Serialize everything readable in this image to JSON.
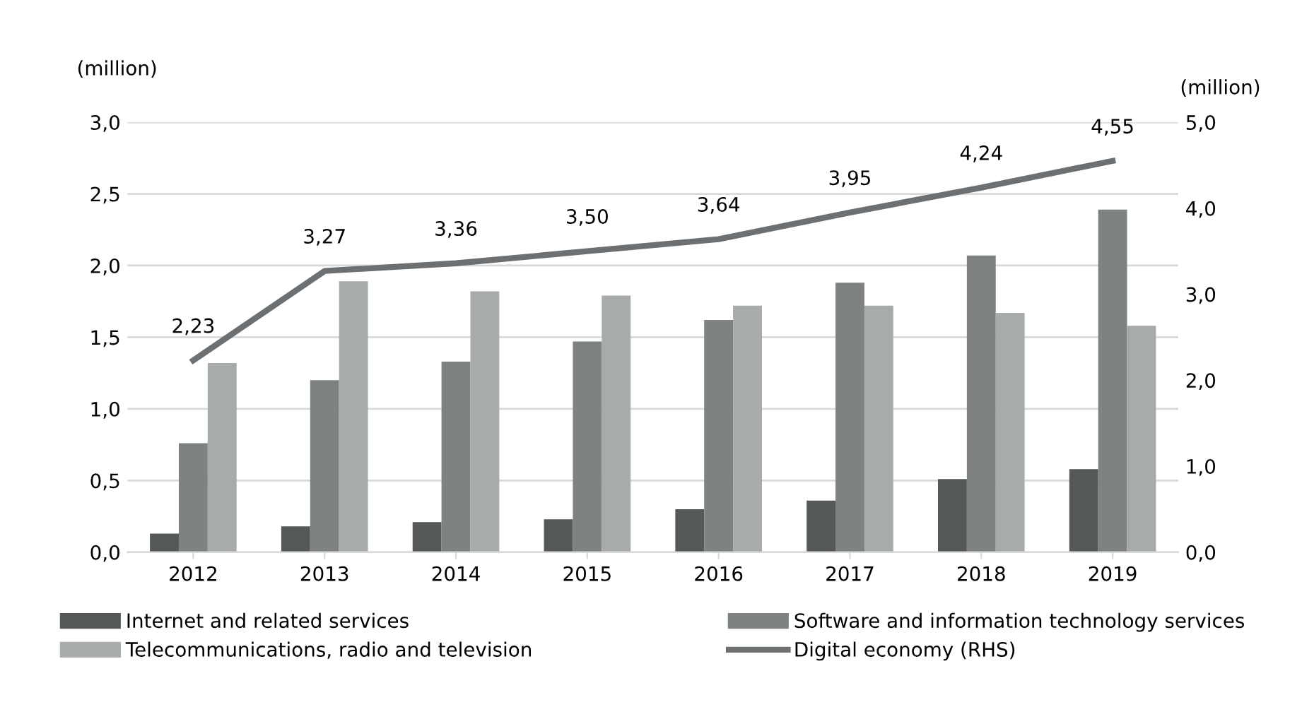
{
  "chart_data": {
    "type": "bar",
    "ylabel": "(million)",
    "y2label": "(million)",
    "categories": [
      "2012",
      "2013",
      "2014",
      "2015",
      "2016",
      "2017",
      "2018",
      "2019"
    ],
    "series": [
      {
        "name": "Internet and related services",
        "color": "#555859",
        "values": [
          0.13,
          0.18,
          0.21,
          0.23,
          0.3,
          0.36,
          0.51,
          0.58
        ]
      },
      {
        "name": "Software and information technology services",
        "color": "#7f8283",
        "values": [
          0.76,
          1.2,
          1.33,
          1.47,
          1.62,
          1.88,
          2.07,
          2.39
        ]
      },
      {
        "name": "Telecommunications, radio and television",
        "color": "#a8abac",
        "values": [
          1.32,
          1.89,
          1.82,
          1.79,
          1.72,
          1.72,
          1.67,
          1.58
        ]
      },
      {
        "name": "Digital economy (RHS)",
        "type": "line",
        "axis": "y2",
        "color": "#6d7072",
        "values": [
          2.23,
          3.27,
          3.36,
          3.5,
          3.64,
          3.95,
          4.24,
          4.55
        ],
        "value_labels": [
          "2,23",
          "3,27",
          "3,36",
          "3,50",
          "3,64",
          "3,95",
          "4,24",
          "4,55"
        ]
      }
    ],
    "ylim": [
      0,
      3
    ],
    "yticks": [
      {
        "value": 0,
        "label": "0,0"
      },
      {
        "value": 0.5,
        "label": "0,5"
      },
      {
        "value": 1,
        "label": "1,0"
      },
      {
        "value": 1.5,
        "label": "1,5"
      },
      {
        "value": 2,
        "label": "2,0"
      },
      {
        "value": 2.5,
        "label": "2,5"
      },
      {
        "value": 3,
        "label": "3,0"
      }
    ],
    "y2lim": [
      0,
      5
    ],
    "y2ticks": [
      {
        "value": 0,
        "label": "0,0"
      },
      {
        "value": 1,
        "label": "1,0"
      },
      {
        "value": 2,
        "label": "2,0"
      },
      {
        "value": 3,
        "label": "3,0"
      },
      {
        "value": 4,
        "label": "4,0"
      },
      {
        "value": 5,
        "label": "5,0"
      }
    ],
    "grid": "y",
    "legend": "bottom"
  }
}
